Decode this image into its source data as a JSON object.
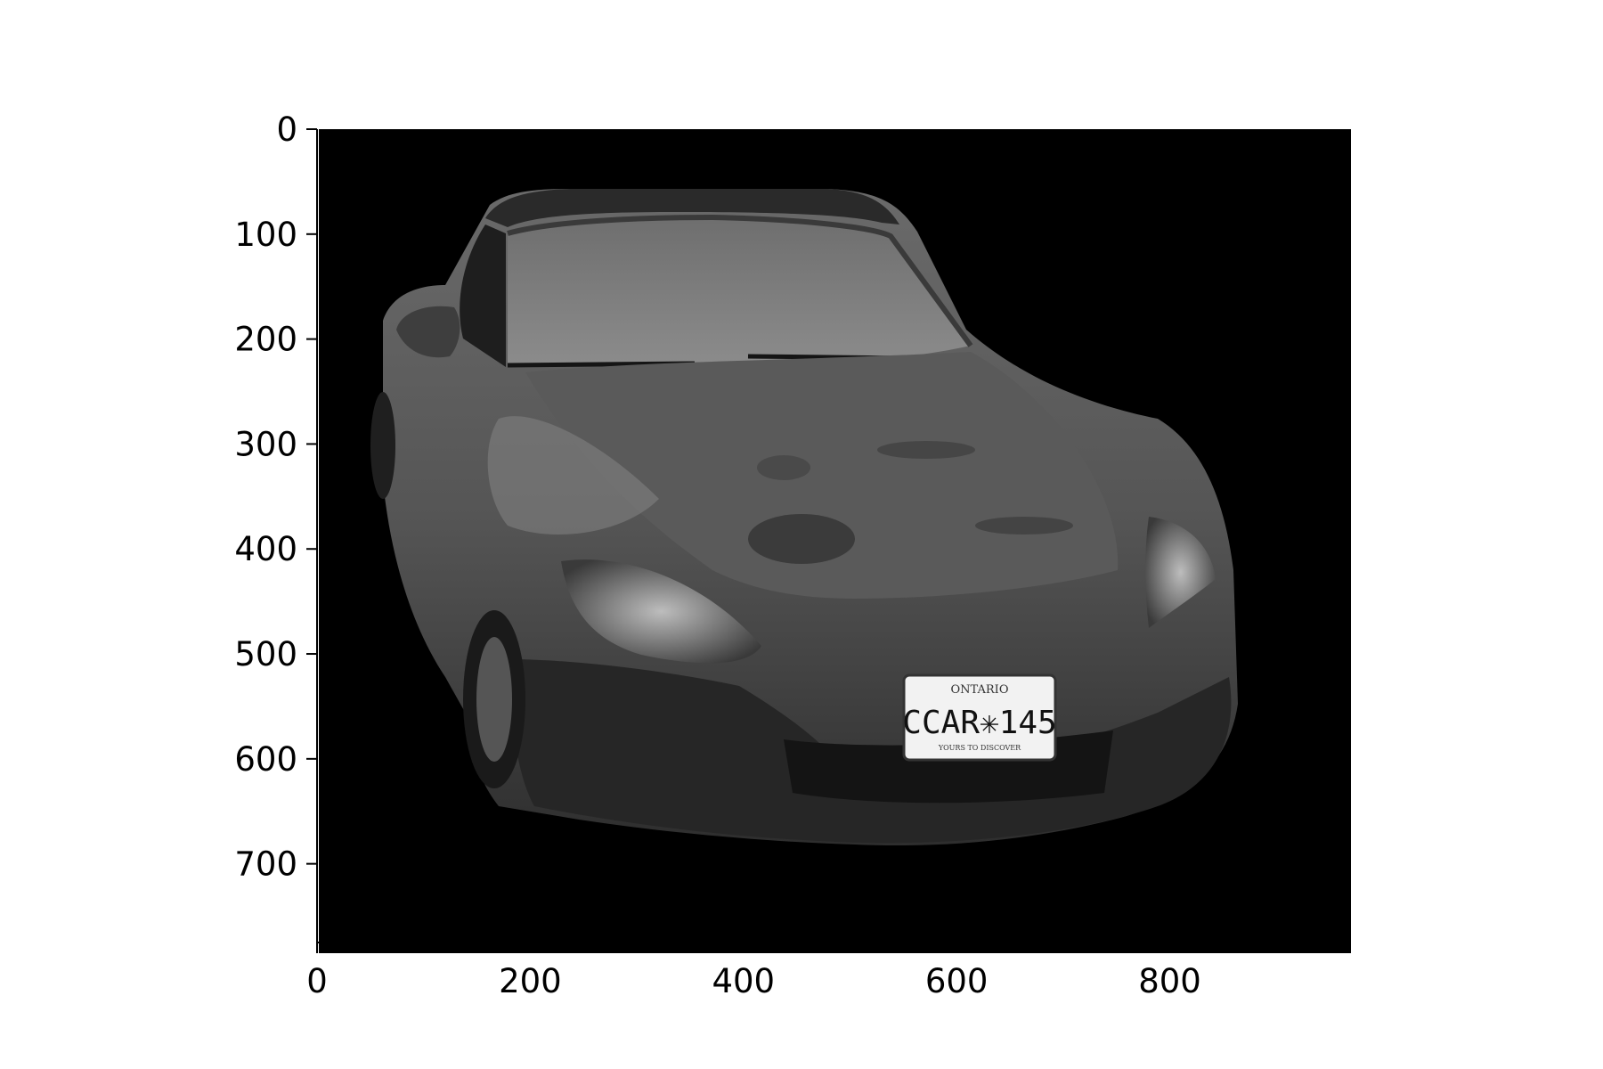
{
  "figure": {
    "background": "#ffffff",
    "image_background": "#000000",
    "image_description_colors": {
      "car_body": "#4a4a4a",
      "car_highlight": "#8a8a8a",
      "roof": "#2b2b2b",
      "plate": "#f2f2f2"
    }
  },
  "chart_data": {
    "type": "image",
    "xlim": [
      0,
      970
    ],
    "ylim": [
      775,
      0
    ],
    "x_ticks": [
      0,
      200,
      400,
      600,
      800
    ],
    "y_ticks": [
      0,
      100,
      200,
      300,
      400,
      500,
      600,
      700
    ],
    "x_tick_labels": [
      "0",
      "200",
      "400",
      "600",
      "800"
    ],
    "y_tick_labels": [
      "0",
      "100",
      "200",
      "300",
      "400",
      "500",
      "600",
      "700"
    ],
    "grid": false
  },
  "plate": {
    "province": "ONTARIO",
    "number": "CCAR✳145",
    "slogan": "YOURS TO DISCOVER"
  }
}
